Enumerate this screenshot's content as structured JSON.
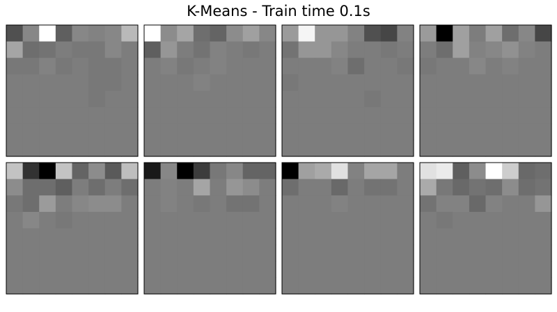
{
  "chart_data": {
    "type": "heatmap",
    "title": "K-Means - Train time 0.1s",
    "colormap": "gray",
    "layout": "2 rows x 4 columns of 8x8 pixel images",
    "axes_ticks": false,
    "panels": [
      {
        "values": [
          [
            80,
            135,
            255,
            95,
            135,
            130,
            135,
            185
          ],
          [
            165,
            110,
            115,
            125,
            120,
            120,
            135,
            125
          ],
          [
            120,
            120,
            130,
            120,
            125,
            120,
            120,
            125
          ],
          [
            125,
            125,
            125,
            125,
            125,
            120,
            120,
            125
          ],
          [
            125,
            125,
            125,
            125,
            125,
            120,
            125,
            125
          ],
          [
            125,
            125,
            125,
            125,
            125,
            125,
            125,
            125
          ],
          [
            125,
            125,
            125,
            125,
            125,
            125,
            125,
            125
          ],
          [
            125,
            125,
            125,
            125,
            125,
            125,
            125,
            125
          ]
        ]
      },
      {
        "values": [
          [
            255,
            140,
            165,
            110,
            100,
            140,
            160,
            135
          ],
          [
            95,
            150,
            125,
            115,
            130,
            125,
            120,
            125
          ],
          [
            125,
            130,
            120,
            125,
            130,
            125,
            125,
            125
          ],
          [
            125,
            125,
            125,
            130,
            125,
            125,
            125,
            125
          ],
          [
            125,
            125,
            125,
            125,
            125,
            125,
            125,
            125
          ],
          [
            125,
            125,
            125,
            125,
            125,
            125,
            125,
            125
          ],
          [
            125,
            125,
            125,
            125,
            125,
            125,
            125,
            125
          ],
          [
            125,
            125,
            125,
            125,
            125,
            125,
            125,
            125
          ]
        ]
      },
      {
        "values": [
          [
            155,
            245,
            150,
            150,
            130,
            80,
            70,
            130
          ],
          [
            115,
            150,
            150,
            135,
            125,
            125,
            120,
            125
          ],
          [
            125,
            125,
            125,
            130,
            110,
            125,
            125,
            120
          ],
          [
            120,
            125,
            125,
            125,
            125,
            125,
            125,
            125
          ],
          [
            125,
            125,
            125,
            125,
            125,
            120,
            125,
            125
          ],
          [
            125,
            125,
            125,
            125,
            125,
            125,
            125,
            125
          ],
          [
            125,
            125,
            125,
            125,
            125,
            125,
            125,
            125
          ],
          [
            125,
            125,
            125,
            125,
            125,
            125,
            125,
            125
          ]
        ]
      },
      {
        "values": [
          [
            155,
            0,
            160,
            125,
            160,
            110,
            135,
            70
          ],
          [
            125,
            110,
            160,
            130,
            135,
            145,
            130,
            125
          ],
          [
            120,
            125,
            125,
            135,
            125,
            130,
            125,
            125
          ],
          [
            125,
            125,
            125,
            125,
            125,
            125,
            125,
            125
          ],
          [
            125,
            125,
            125,
            125,
            125,
            125,
            125,
            125
          ],
          [
            125,
            125,
            125,
            125,
            125,
            125,
            125,
            125
          ],
          [
            125,
            125,
            125,
            125,
            125,
            125,
            125,
            125
          ],
          [
            125,
            125,
            125,
            125,
            125,
            125,
            125,
            125
          ]
        ]
      },
      {
        "values": [
          [
            195,
            50,
            0,
            195,
            100,
            140,
            90,
            190
          ],
          [
            140,
            110,
            110,
            95,
            125,
            110,
            125,
            110
          ],
          [
            120,
            110,
            155,
            125,
            135,
            140,
            140,
            125
          ],
          [
            125,
            135,
            125,
            120,
            125,
            125,
            125,
            125
          ],
          [
            125,
            125,
            125,
            125,
            125,
            125,
            125,
            125
          ],
          [
            125,
            125,
            125,
            125,
            125,
            125,
            125,
            125
          ],
          [
            125,
            125,
            125,
            125,
            125,
            125,
            125,
            125
          ],
          [
            125,
            125,
            125,
            125,
            125,
            125,
            125,
            125
          ]
        ]
      },
      {
        "values": [
          [
            25,
            135,
            0,
            60,
            120,
            135,
            100,
            100
          ],
          [
            125,
            130,
            125,
            165,
            125,
            150,
            140,
            125
          ],
          [
            125,
            130,
            125,
            120,
            125,
            115,
            115,
            125
          ],
          [
            125,
            125,
            125,
            125,
            125,
            125,
            125,
            125
          ],
          [
            125,
            125,
            125,
            125,
            125,
            125,
            125,
            125
          ],
          [
            125,
            125,
            125,
            125,
            125,
            125,
            125,
            125
          ],
          [
            125,
            125,
            125,
            125,
            125,
            125,
            125,
            125
          ],
          [
            125,
            125,
            125,
            125,
            125,
            125,
            125,
            125
          ]
        ]
      },
      {
        "values": [
          [
            0,
            160,
            170,
            225,
            130,
            165,
            165,
            125
          ],
          [
            110,
            125,
            125,
            105,
            125,
            115,
            115,
            125
          ],
          [
            125,
            125,
            125,
            130,
            125,
            125,
            125,
            125
          ],
          [
            125,
            125,
            125,
            125,
            125,
            125,
            125,
            125
          ],
          [
            125,
            125,
            125,
            125,
            125,
            125,
            125,
            125
          ],
          [
            125,
            125,
            125,
            125,
            125,
            125,
            125,
            125
          ],
          [
            125,
            125,
            125,
            125,
            125,
            125,
            125,
            125
          ],
          [
            125,
            125,
            125,
            125,
            125,
            125,
            125,
            125
          ]
        ]
      },
      {
        "values": [
          [
            225,
            235,
            95,
            140,
            255,
            205,
            105,
            110
          ],
          [
            170,
            120,
            105,
            115,
            110,
            140,
            110,
            115
          ],
          [
            115,
            130,
            130,
            105,
            130,
            125,
            125,
            150
          ],
          [
            125,
            120,
            125,
            125,
            125,
            125,
            125,
            125
          ],
          [
            125,
            125,
            125,
            125,
            125,
            125,
            125,
            125
          ],
          [
            125,
            125,
            125,
            125,
            125,
            125,
            125,
            125
          ],
          [
            125,
            125,
            125,
            125,
            125,
            125,
            125,
            125
          ],
          [
            125,
            125,
            125,
            125,
            125,
            125,
            125,
            125
          ]
        ]
      }
    ]
  }
}
